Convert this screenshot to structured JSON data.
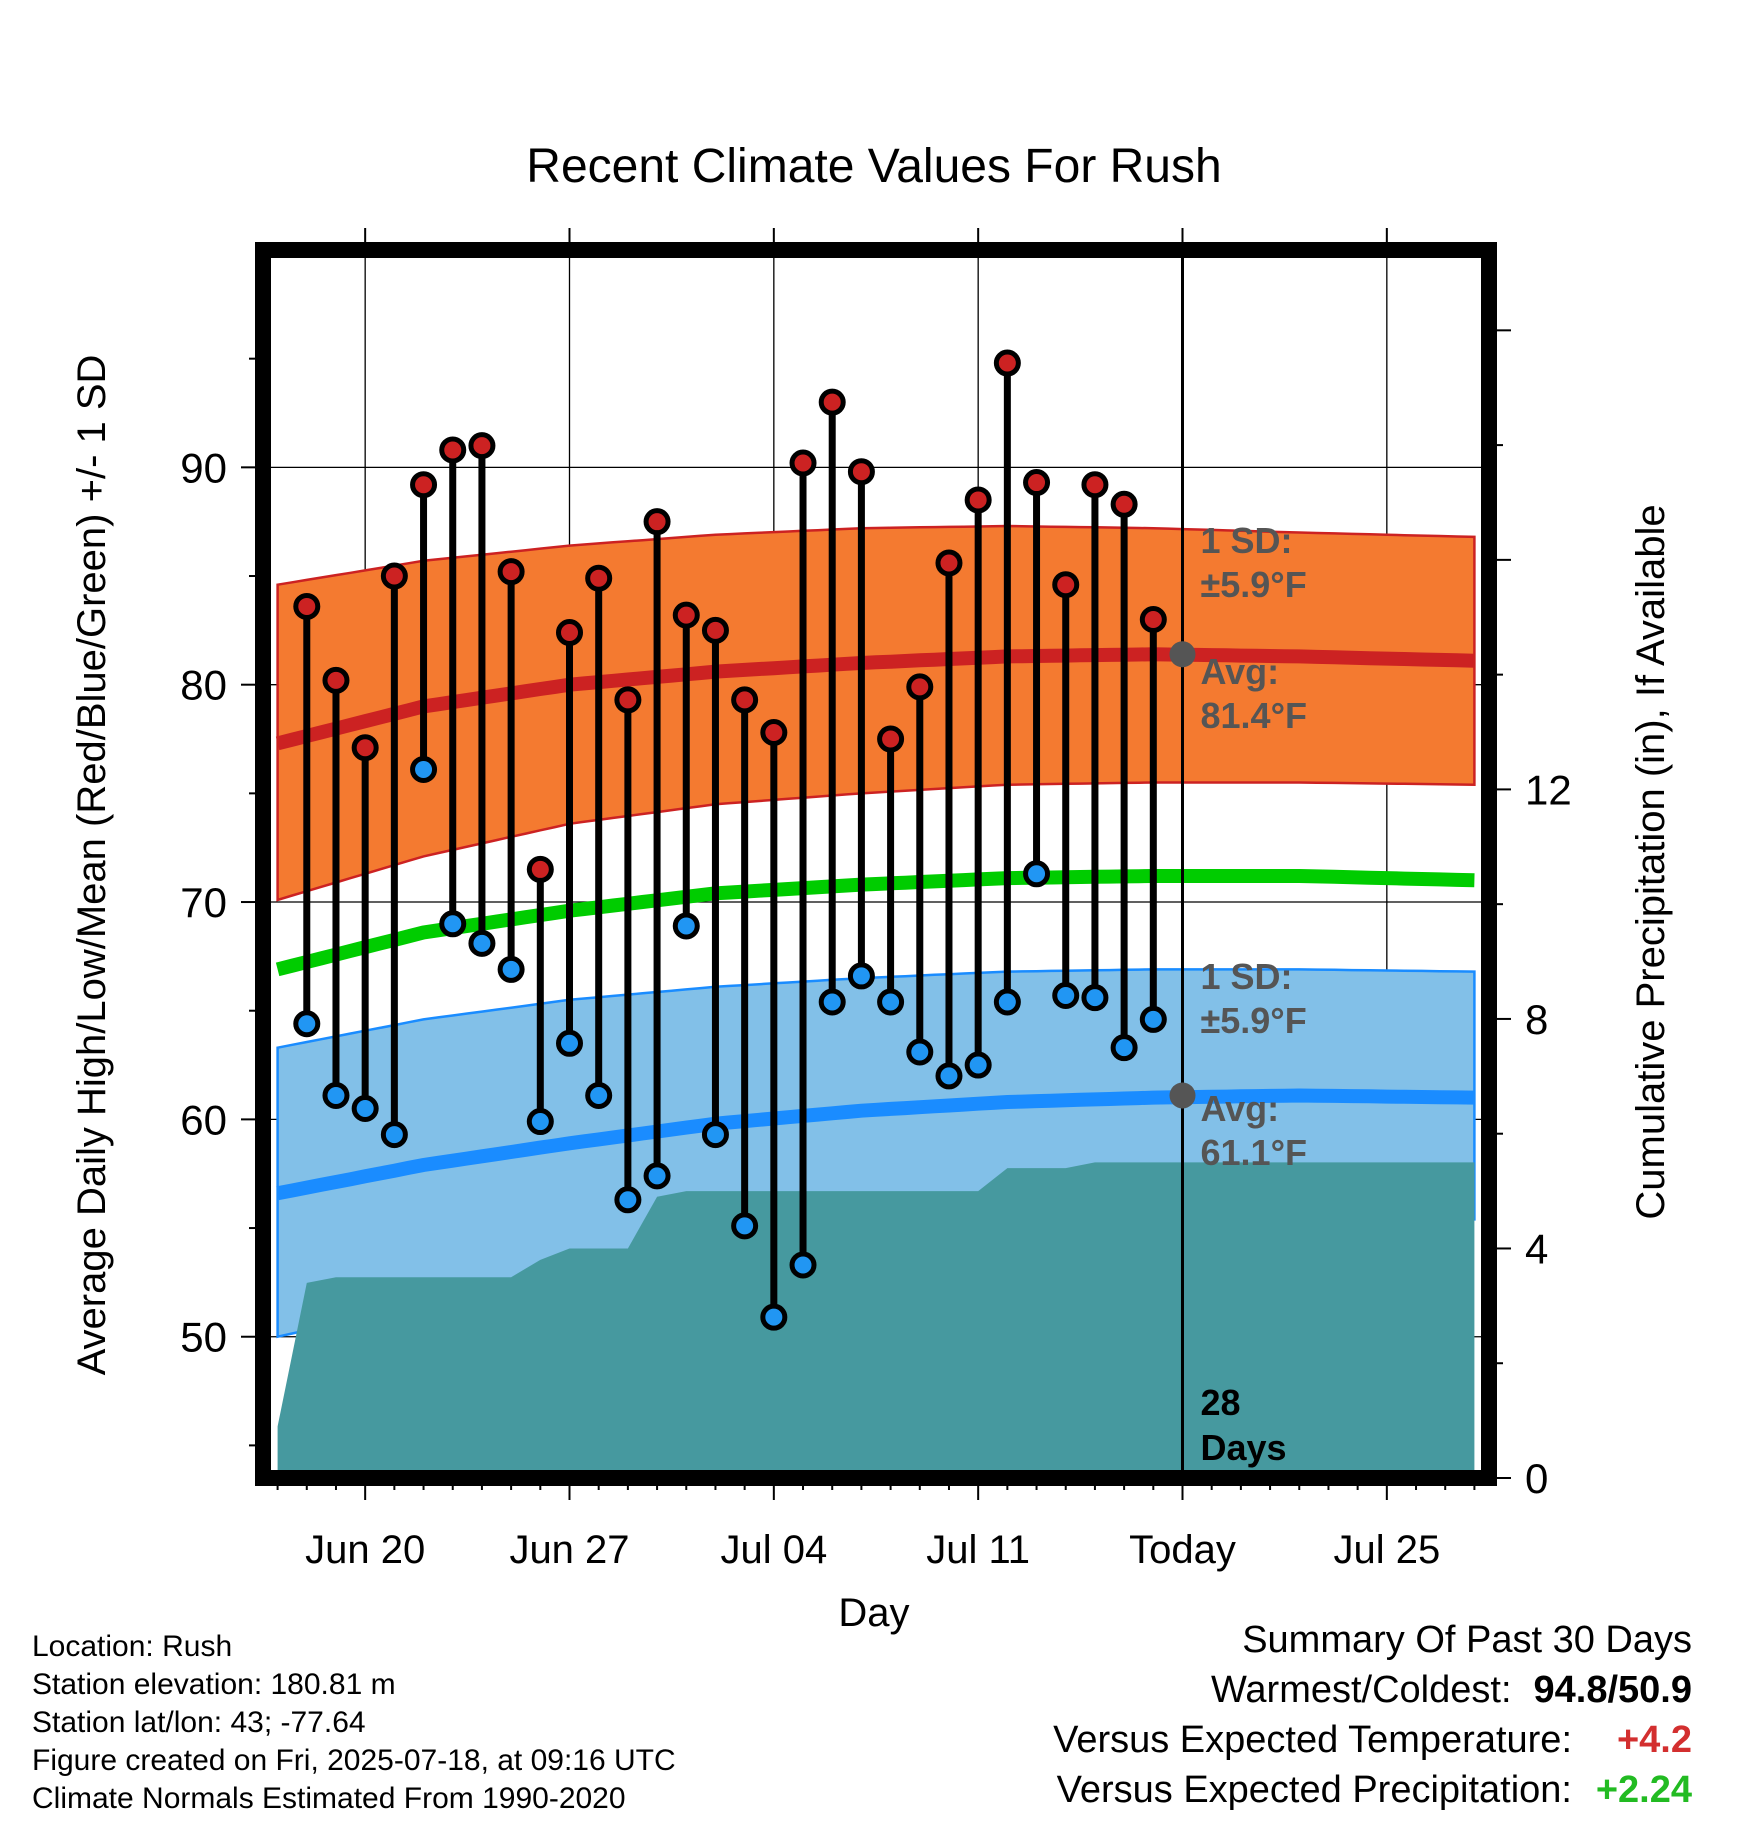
{
  "chart_data": {
    "type": "line",
    "title": "Recent Climate Values For Rush",
    "xlabel": "Day",
    "ylabel_left": "Average Daily High/Low/Mean (Red/Blue/Green) +/- 1 SD",
    "ylabel_right": "Cumulative Precipitation (in), If Available",
    "x_range": [
      -0.5,
      41.5
    ],
    "x_ticks": [
      {
        "day": 3,
        "label": "Jun 20"
      },
      {
        "day": 10,
        "label": "Jun 27"
      },
      {
        "day": 17,
        "label": "Jul 04"
      },
      {
        "day": 24,
        "label": "Jul 11"
      },
      {
        "day": 31,
        "label": "Today"
      },
      {
        "day": 38,
        "label": "Jul 25"
      }
    ],
    "y_left_range": [
      43.5,
      100
    ],
    "y_left_ticks": [
      50,
      60,
      70,
      80,
      90
    ],
    "y_right_range": [
      0,
      21.4
    ],
    "y_right_ticks": [
      0,
      4,
      8,
      12
    ],
    "grid": true,
    "today_day": 31,
    "daily": {
      "day": [
        1,
        2,
        3,
        4,
        5,
        6,
        7,
        8,
        9,
        10,
        11,
        12,
        13,
        14,
        15,
        16,
        17,
        18,
        19,
        20,
        21,
        22,
        23,
        24,
        25,
        26,
        27,
        28,
        29,
        30
      ],
      "high": [
        83.6,
        80.2,
        77.1,
        85.0,
        89.2,
        90.8,
        91.0,
        85.2,
        71.5,
        82.4,
        84.9,
        79.3,
        87.5,
        83.2,
        82.5,
        79.3,
        77.8,
        90.2,
        93.0,
        89.8,
        77.5,
        79.9,
        85.6,
        88.5,
        94.8,
        89.3,
        84.6,
        89.2,
        88.3,
        83.0
      ],
      "low": [
        64.4,
        61.1,
        60.5,
        59.3,
        76.1,
        69.0,
        68.1,
        66.9,
        59.9,
        63.5,
        61.1,
        56.3,
        57.4,
        68.9,
        59.3,
        55.1,
        50.9,
        53.3,
        65.4,
        66.6,
        65.4,
        63.1,
        62.0,
        62.5,
        65.4,
        71.3,
        65.7,
        65.6,
        63.3,
        64.6
      ]
    },
    "normals": {
      "day": [
        0,
        5,
        10,
        15,
        20,
        25,
        30,
        35,
        41
      ],
      "high_mean": [
        77.3,
        79.0,
        80.0,
        80.6,
        81.0,
        81.3,
        81.4,
        81.3,
        81.1
      ],
      "high_upper": [
        84.6,
        85.7,
        86.4,
        86.9,
        87.2,
        87.3,
        87.2,
        87.0,
        86.8
      ],
      "high_lower": [
        70.1,
        72.1,
        73.6,
        74.5,
        75.0,
        75.4,
        75.5,
        75.5,
        75.4
      ],
      "mean_mean": [
        66.9,
        68.6,
        69.6,
        70.4,
        70.8,
        71.1,
        71.2,
        71.2,
        71.0
      ],
      "low_mean": [
        56.6,
        57.9,
        58.9,
        59.8,
        60.4,
        60.8,
        61.0,
        61.1,
        61.0
      ],
      "low_upper": [
        63.3,
        64.6,
        65.5,
        66.1,
        66.5,
        66.8,
        66.9,
        66.9,
        66.8
      ],
      "low_lower": [
        50.0,
        51.5,
        52.6,
        53.7,
        54.5,
        55.0,
        55.3,
        55.4,
        55.4
      ]
    },
    "precip_cumulative": {
      "day": [
        0,
        1,
        2,
        3,
        4,
        5,
        6,
        7,
        8,
        9,
        10,
        11,
        12,
        13,
        14,
        15,
        16,
        17,
        18,
        19,
        20,
        21,
        22,
        23,
        24,
        25,
        26,
        27,
        28,
        29,
        30,
        31,
        41
      ],
      "value": [
        0.9,
        3.4,
        3.5,
        3.5,
        3.5,
        3.5,
        3.5,
        3.5,
        3.5,
        3.8,
        4.0,
        4.0,
        4.0,
        4.9,
        5.0,
        5.0,
        5.0,
        5.0,
        5.0,
        5.0,
        5.0,
        5.0,
        5.0,
        5.0,
        5.0,
        5.4,
        5.4,
        5.4,
        5.5,
        5.5,
        5.5,
        5.5,
        5.5
      ]
    },
    "annotations": {
      "high_sd_label": "1 SD:",
      "high_sd_value": "±5.9°F",
      "high_avg_label": "Avg:",
      "high_avg_value": "81.4°F",
      "high_avg_point": 81.4,
      "low_sd_label": "1 SD:",
      "low_sd_value": "±5.9°F",
      "low_avg_label": "Avg:",
      "low_avg_value": "61.1°F",
      "low_avg_point": 61.1,
      "days_count": "28",
      "days_label": "Days"
    },
    "colors": {
      "high_band": "#f47a30",
      "high_line": "#cc2222",
      "low_band": "#82c0e8",
      "low_line": "#1a8cff",
      "mean_line": "#00cc00",
      "precip": "#46999f",
      "high_dot": "#cc2222",
      "low_dot": "#2196f3",
      "avg_dot": "#555555",
      "annotation_text": "#555555"
    }
  },
  "info": {
    "location": "Location: Rush",
    "elevation": "Station elevation: 180.81 m",
    "latlon": "Station lat/lon: 43; -77.64",
    "created": "Figure created on Fri, 2025-07-18, at 09:16 UTC",
    "normals": "Climate Normals Estimated From 1990-2020"
  },
  "summary": {
    "title": "Summary Of Past 30 Days",
    "warm_cold_label": "Warmest/Coldest:",
    "warm_cold_value": "94.8/50.9",
    "temp_label": "Versus Expected Temperature:",
    "temp_value": "+4.2",
    "temp_color": "#d32f2f",
    "precip_label": "Versus Expected Precipitation:",
    "precip_value": "+2.24",
    "precip_color": "#22bb22"
  }
}
